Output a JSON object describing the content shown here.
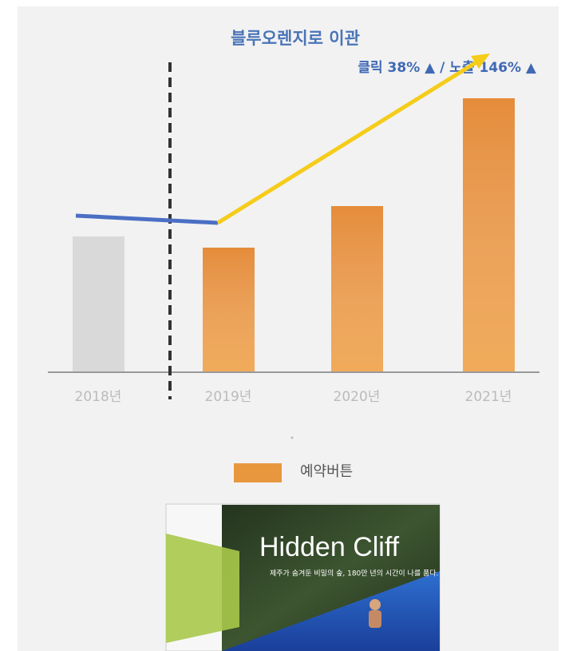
{
  "chart_data": {
    "type": "bar",
    "title": "블루오렌지로 이관",
    "annotation": "클릭 38% ▲ / 노출 146% ▲",
    "categories": [
      "2018년",
      "2019년",
      "2020년",
      "2021년"
    ],
    "values": [
      170,
      156,
      208,
      343
    ],
    "colors": [
      "#d9d9d9",
      "#e58c3a",
      "#e58c3a",
      "#e58c3a"
    ],
    "ylim": [
      0,
      350
    ],
    "series_name": "예약버튼",
    "legend_color": "#e8973f"
  },
  "banner": {
    "title": "Hidden Cliff",
    "subtitle": "제주가 숨겨둔 비밀의 숲, 180만 년의 시간이 나를 품다."
  }
}
